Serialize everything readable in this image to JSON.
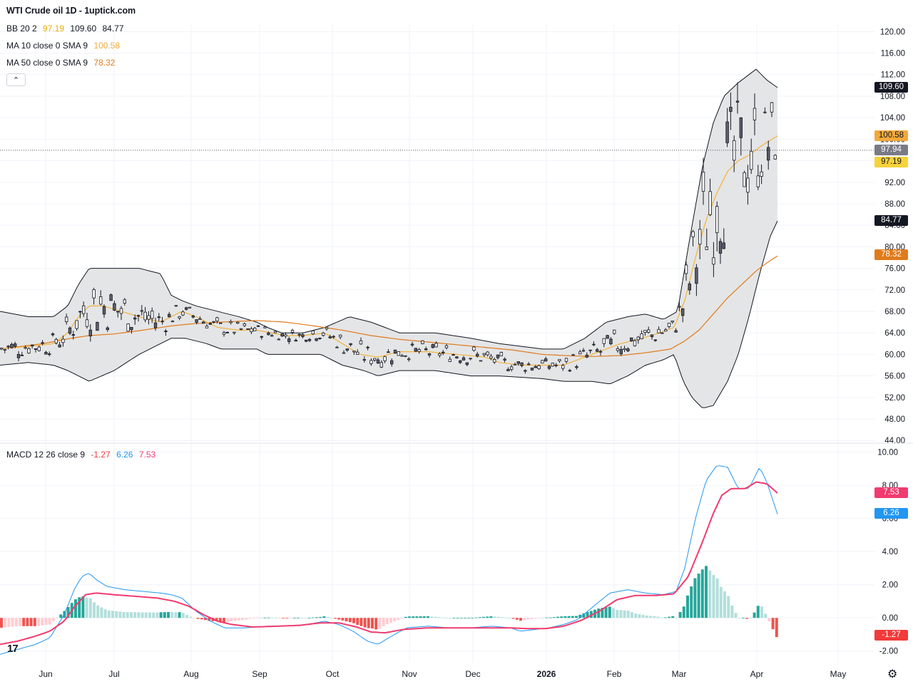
{
  "chart_data": {
    "type": "candlestick",
    "title": "WTI Crude oil  1D - 1uptick.com",
    "legend": {
      "bb": {
        "label": "BB 20 2",
        "basis": "97.19",
        "upper": "109.60",
        "lower": "84.77"
      },
      "ma10": {
        "label": "MA 10 close 0 SMA 9",
        "value": "100.58"
      },
      "ma50": {
        "label": "MA 50 close 0 SMA 9",
        "value": "78.32"
      },
      "macd": {
        "label": "MACD 12 26 close 9",
        "hist": "-1.27",
        "macd": "6.26",
        "signal": "7.53"
      }
    },
    "price_axis": {
      "ticks": [
        "120.00",
        "116.00",
        "112.00",
        "108.00",
        "104.00",
        "100.00",
        "96.00",
        "92.00",
        "88.00",
        "84.00",
        "80.00",
        "76.00",
        "72.00",
        "68.00",
        "64.00",
        "60.00",
        "56.00",
        "52.00",
        "48.00",
        "44.00"
      ],
      "range": [
        43.5,
        121.5
      ]
    },
    "macd_axis": {
      "ticks": [
        "10.00",
        "8.00",
        "6.00",
        "4.00",
        "2.00",
        "0.00",
        "-2.00"
      ],
      "range": [
        -2.7,
        10.2
      ]
    },
    "x_ticks": [
      "Jun",
      "Jul",
      "Aug",
      "Sep",
      "Oct",
      "Nov",
      "Dec",
      "2026",
      "Feb",
      "Mar",
      "Apr",
      "May"
    ],
    "last_price": "97.94",
    "colors": {
      "up": "#ffffff",
      "down": "#5d606b",
      "wick": "#131722",
      "ma10": "#f2b33d",
      "ma50": "#e07b1b",
      "bb_band": "#e4e5e6",
      "bb_line": "#131722",
      "macd_line": "#2196f3",
      "signal_line": "#f23a6f",
      "hist_up_strong": "#26a69a",
      "hist_up_weak": "#b2dfdb",
      "hist_down_strong": "#ef5350",
      "hist_down_weak": "#ffcdd2",
      "badge_upper": "#131722",
      "badge_lower": "#131722",
      "badge_ma10": "#f2a93b",
      "badge_basis": "#f7d23a",
      "badge_ma50": "#e07b1b",
      "badge_last": "#787b86",
      "badge_signal": "#f23a6f",
      "badge_macd": "#2196f3",
      "badge_hist": "#f23a3a"
    },
    "bb_upper_anchors": [
      [
        0,
        68
      ],
      [
        40,
        67
      ],
      [
        75,
        67
      ],
      [
        95,
        69
      ],
      [
        110,
        73
      ],
      [
        125,
        76
      ],
      [
        160,
        76
      ],
      [
        195,
        76
      ],
      [
        225,
        75
      ],
      [
        240,
        71
      ],
      [
        255,
        70
      ],
      [
        275,
        69
      ],
      [
        305,
        68
      ],
      [
        335,
        67
      ],
      [
        360,
        66
      ],
      [
        375,
        65
      ],
      [
        395,
        64
      ],
      [
        425,
        64
      ],
      [
        455,
        65
      ],
      [
        490,
        67
      ],
      [
        520,
        66
      ],
      [
        560,
        64
      ],
      [
        610,
        64
      ],
      [
        660,
        63
      ],
      [
        700,
        62
      ],
      [
        760,
        61
      ],
      [
        790,
        61
      ],
      [
        820,
        63
      ],
      [
        850,
        66
      ],
      [
        880,
        67
      ],
      [
        905,
        67.5
      ],
      [
        930,
        66.5
      ],
      [
        950,
        68
      ],
      [
        965,
        80
      ],
      [
        985,
        95
      ],
      [
        1000,
        103
      ],
      [
        1015,
        108
      ],
      [
        1035,
        110.5
      ],
      [
        1060,
        113
      ],
      [
        1075,
        111
      ],
      [
        1090,
        109.6
      ]
    ],
    "bb_lower_anchors": [
      [
        0,
        58
      ],
      [
        40,
        58.5
      ],
      [
        75,
        58
      ],
      [
        95,
        57
      ],
      [
        110,
        56
      ],
      [
        125,
        55
      ],
      [
        160,
        57
      ],
      [
        195,
        60
      ],
      [
        225,
        62
      ],
      [
        240,
        63
      ],
      [
        260,
        63
      ],
      [
        290,
        62
      ],
      [
        310,
        61
      ],
      [
        330,
        61
      ],
      [
        360,
        61
      ],
      [
        375,
        60
      ],
      [
        395,
        60
      ],
      [
        420,
        60
      ],
      [
        450,
        60
      ],
      [
        480,
        58
      ],
      [
        510,
        57
      ],
      [
        530,
        56
      ],
      [
        560,
        57
      ],
      [
        610,
        57
      ],
      [
        660,
        56
      ],
      [
        700,
        56
      ],
      [
        760,
        55.5
      ],
      [
        790,
        55
      ],
      [
        830,
        55
      ],
      [
        855,
        54.5
      ],
      [
        880,
        56
      ],
      [
        905,
        58
      ],
      [
        930,
        59
      ],
      [
        945,
        60
      ],
      [
        958,
        55
      ],
      [
        970,
        52
      ],
      [
        985,
        50
      ],
      [
        1000,
        50.5
      ],
      [
        1020,
        55
      ],
      [
        1035,
        60
      ],
      [
        1050,
        67
      ],
      [
        1065,
        75
      ],
      [
        1080,
        82
      ],
      [
        1090,
        84.8
      ]
    ],
    "ma10_anchors": [
      [
        0,
        61
      ],
      [
        40,
        61.5
      ],
      [
        75,
        62
      ],
      [
        95,
        64
      ],
      [
        110,
        67
      ],
      [
        125,
        69
      ],
      [
        145,
        69
      ],
      [
        170,
        68
      ],
      [
        195,
        67
      ],
      [
        225,
        66
      ],
      [
        240,
        67
      ],
      [
        255,
        68
      ],
      [
        275,
        67
      ],
      [
        305,
        65
      ],
      [
        335,
        64.5
      ],
      [
        360,
        64.5
      ],
      [
        380,
        64
      ],
      [
        400,
        63.5
      ],
      [
        425,
        63.5
      ],
      [
        455,
        64
      ],
      [
        480,
        62
      ],
      [
        505,
        60
      ],
      [
        530,
        59.5
      ],
      [
        560,
        60.5
      ],
      [
        600,
        60.5
      ],
      [
        640,
        60
      ],
      [
        680,
        59.5
      ],
      [
        700,
        58.5
      ],
      [
        730,
        58
      ],
      [
        760,
        58
      ],
      [
        790,
        58
      ],
      [
        810,
        59
      ],
      [
        840,
        60.5
      ],
      [
        870,
        62
      ],
      [
        900,
        63
      ],
      [
        925,
        64
      ],
      [
        945,
        65
      ],
      [
        960,
        70
      ],
      [
        975,
        78
      ],
      [
        990,
        85
      ],
      [
        1005,
        90
      ],
      [
        1020,
        94
      ],
      [
        1035,
        96
      ],
      [
        1050,
        97
      ],
      [
        1070,
        99
      ],
      [
        1090,
        100.6
      ]
    ],
    "ma50_anchors": [
      [
        0,
        61
      ],
      [
        60,
        62
      ],
      [
        100,
        63
      ],
      [
        125,
        63.5
      ],
      [
        160,
        63.8
      ],
      [
        200,
        64.5
      ],
      [
        240,
        65.3
      ],
      [
        270,
        65.7
      ],
      [
        310,
        66
      ],
      [
        360,
        66.3
      ],
      [
        400,
        66
      ],
      [
        440,
        65.3
      ],
      [
        480,
        64.5
      ],
      [
        520,
        63.5
      ],
      [
        560,
        62.8
      ],
      [
        600,
        62.3
      ],
      [
        640,
        61.8
      ],
      [
        680,
        61.3
      ],
      [
        720,
        60.8
      ],
      [
        760,
        60
      ],
      [
        790,
        59.8
      ],
      [
        830,
        59.6
      ],
      [
        870,
        59.8
      ],
      [
        905,
        60.3
      ],
      [
        940,
        61
      ],
      [
        960,
        62.5
      ],
      [
        980,
        64.5
      ],
      [
        1000,
        67.5
      ],
      [
        1020,
        70.5
      ],
      [
        1040,
        73
      ],
      [
        1060,
        75.5
      ],
      [
        1075,
        77
      ],
      [
        1090,
        78.3
      ]
    ],
    "macd_anchors": [
      [
        0,
        -2.2
      ],
      [
        25,
        -1.9
      ],
      [
        50,
        -1.6
      ],
      [
        70,
        -1.2
      ],
      [
        90,
        0.2
      ],
      [
        105,
        1.8
      ],
      [
        115,
        2.5
      ],
      [
        125,
        2.7
      ],
      [
        135,
        2.3
      ],
      [
        150,
        1.9
      ],
      [
        175,
        1.7
      ],
      [
        200,
        1.6
      ],
      [
        225,
        1.5
      ],
      [
        240,
        1.4
      ],
      [
        255,
        1.2
      ],
      [
        275,
        0.4
      ],
      [
        295,
        -0.2
      ],
      [
        315,
        -0.6
      ],
      [
        345,
        -0.6
      ],
      [
        375,
        -0.5
      ],
      [
        400,
        -0.5
      ],
      [
        430,
        -0.4
      ],
      [
        455,
        -0.2
      ],
      [
        475,
        -0.4
      ],
      [
        495,
        -0.8
      ],
      [
        515,
        -1.4
      ],
      [
        530,
        -1.6
      ],
      [
        545,
        -1.2
      ],
      [
        570,
        -0.6
      ],
      [
        600,
        -0.5
      ],
      [
        630,
        -0.6
      ],
      [
        660,
        -0.6
      ],
      [
        690,
        -0.5
      ],
      [
        715,
        -0.6
      ],
      [
        730,
        -0.8
      ],
      [
        750,
        -0.7
      ],
      [
        770,
        -0.6
      ],
      [
        790,
        -0.4
      ],
      [
        810,
        -0.1
      ],
      [
        835,
        0.8
      ],
      [
        855,
        1.5
      ],
      [
        880,
        1.7
      ],
      [
        905,
        1.5
      ],
      [
        930,
        1.4
      ],
      [
        948,
        1.6
      ],
      [
        960,
        3
      ],
      [
        975,
        6
      ],
      [
        990,
        8.3
      ],
      [
        1005,
        9.2
      ],
      [
        1020,
        9.1
      ],
      [
        1035,
        7.8
      ],
      [
        1050,
        7.8
      ],
      [
        1065,
        9.1
      ],
      [
        1075,
        8.2
      ],
      [
        1090,
        6.26
      ]
    ],
    "signal_anchors": [
      [
        0,
        -1.6
      ],
      [
        25,
        -1.4
      ],
      [
        50,
        -1.1
      ],
      [
        70,
        -0.8
      ],
      [
        90,
        -0.2
      ],
      [
        105,
        0.7
      ],
      [
        120,
        1.4
      ],
      [
        135,
        1.5
      ],
      [
        160,
        1.4
      ],
      [
        190,
        1.3
      ],
      [
        220,
        1.2
      ],
      [
        245,
        1.0
      ],
      [
        265,
        0.7
      ],
      [
        285,
        0.2
      ],
      [
        305,
        -0.2
      ],
      [
        325,
        -0.4
      ],
      [
        355,
        -0.55
      ],
      [
        390,
        -0.5
      ],
      [
        420,
        -0.45
      ],
      [
        450,
        -0.3
      ],
      [
        475,
        -0.3
      ],
      [
        500,
        -0.55
      ],
      [
        520,
        -0.85
      ],
      [
        540,
        -0.9
      ],
      [
        565,
        -0.7
      ],
      [
        600,
        -0.6
      ],
      [
        640,
        -0.6
      ],
      [
        680,
        -0.6
      ],
      [
        715,
        -0.6
      ],
      [
        740,
        -0.65
      ],
      [
        765,
        -0.65
      ],
      [
        790,
        -0.5
      ],
      [
        815,
        -0.15
      ],
      [
        840,
        0.4
      ],
      [
        865,
        1.1
      ],
      [
        890,
        1.35
      ],
      [
        920,
        1.35
      ],
      [
        945,
        1.45
      ],
      [
        965,
        2.5
      ],
      [
        985,
        4.6
      ],
      [
        1000,
        6.3
      ],
      [
        1012,
        7.4
      ],
      [
        1025,
        7.8
      ],
      [
        1045,
        7.8
      ],
      [
        1060,
        8.2
      ],
      [
        1075,
        8.1
      ],
      [
        1090,
        7.53
      ]
    ]
  }
}
